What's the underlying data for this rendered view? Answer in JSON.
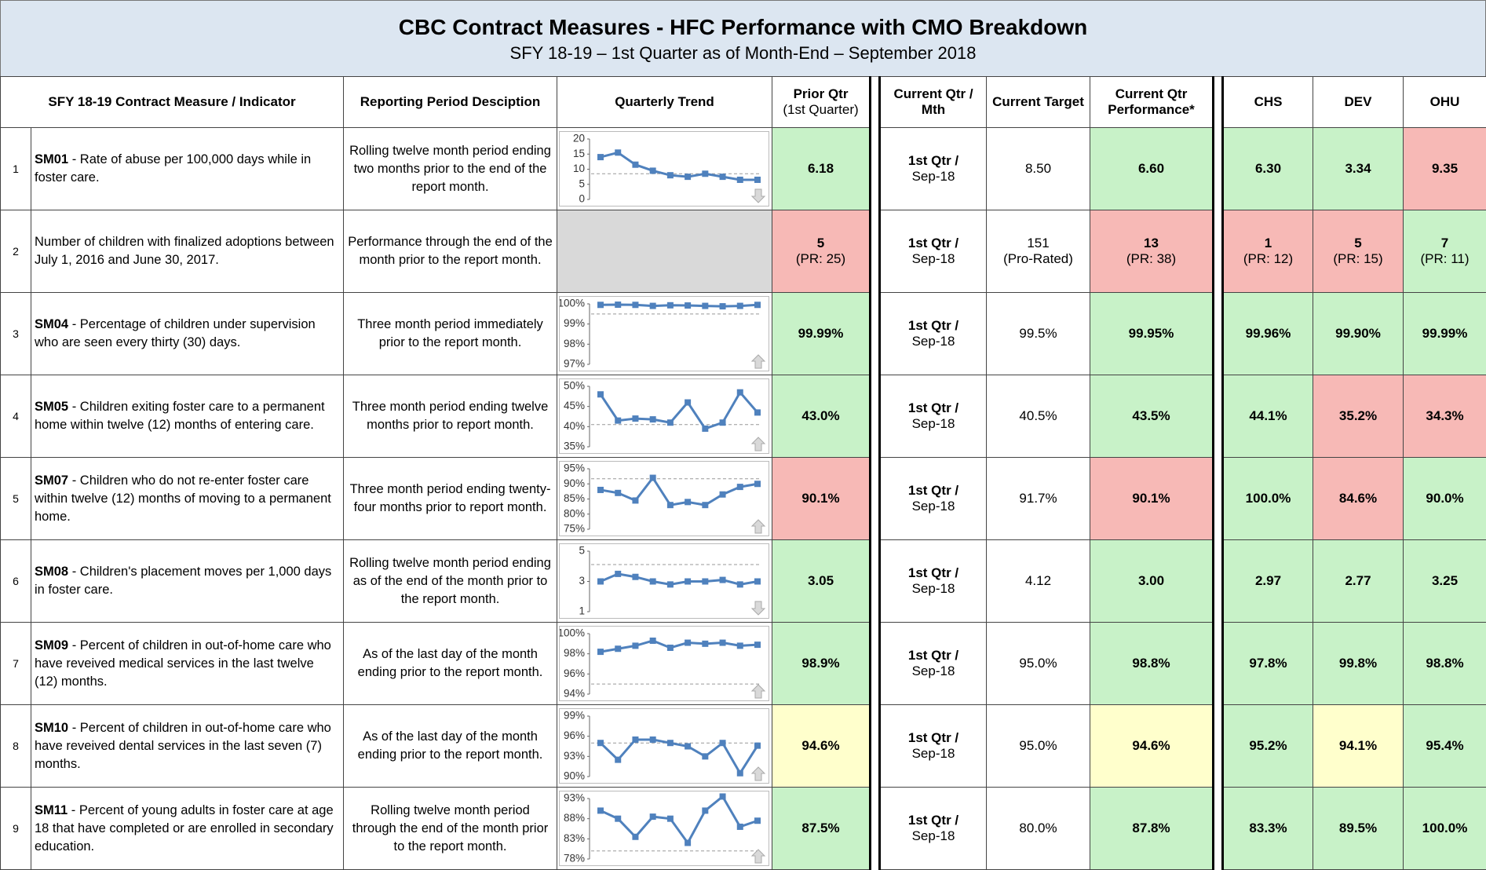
{
  "header": {
    "title": "CBC Contract Measures - HFC Performance with CMO Breakdown",
    "subtitle": "SFY 18-19 – 1st Quarter as of Month-End – September 2018"
  },
  "columns": {
    "measure": "SFY 18-19 Contract Measure / Indicator",
    "period": "Reporting Period Desciption",
    "trend": "Quarterly Trend",
    "prior": "Prior Qtr",
    "prior_note": "(1st Quarter)",
    "qtr": "Current Qtr / Mth",
    "target": "Current Target",
    "perf": "Current Qtr Performance*",
    "chs": "CHS",
    "dev": "DEV",
    "ohu": "OHU"
  },
  "rows": [
    {
      "num": "1",
      "code": "SM01",
      "desc": " - Rate of abuse per 100,000 days while in foster care.",
      "period": "Rolling twelve month period ending two months prior to the end of the report month.",
      "trend": {
        "type": "line",
        "color": "#4f81bd",
        "ylim": [
          0,
          20
        ],
        "yticks": [
          20,
          15,
          10,
          5,
          0
        ],
        "values": [
          14,
          15.5,
          11.5,
          9.5,
          8,
          7.5,
          8.5,
          7.5,
          6.5,
          6.5
        ],
        "target": 8.5,
        "arrow": "down"
      },
      "qtr": "1st Qtr  /",
      "mth": "Sep-18",
      "target": {
        "value": "8.50"
      },
      "prior": {
        "value": "6.18",
        "color": "#c8f2c8"
      },
      "perf": {
        "value": "6.60",
        "color": "#c8f2c8"
      },
      "chs": {
        "value": "6.30",
        "color": "#c8f2c8"
      },
      "dev": {
        "value": "3.34",
        "color": "#c8f2c8"
      },
      "ohu": {
        "value": "9.35",
        "color": "#f7b9b6"
      }
    },
    {
      "num": "2",
      "desc": "Number of children with finalized adoptions between July 1, 2016 and June 30, 2017.",
      "period": "Performance through the end of the month prior to the report month.",
      "qtr": "1st Qtr  /",
      "mth": "Sep-18",
      "target": {
        "value": "151",
        "note": "(Pro-Rated)"
      },
      "prior": {
        "value": "5",
        "note": "(PR: 25)",
        "color": "#f7b9b6"
      },
      "perf": {
        "value": "13",
        "note": "(PR: 38)",
        "color": "#f7b9b6"
      },
      "chs": {
        "value": "1",
        "note": "(PR: 12)",
        "color": "#f7b9b6"
      },
      "dev": {
        "value": "5",
        "note": "(PR: 15)",
        "color": "#f7b9b6"
      },
      "ohu": {
        "value": "7",
        "note": "(PR: 11)",
        "color": "#c8f2c8"
      }
    },
    {
      "num": "3",
      "code": "SM04",
      "desc": " - Percentage of children under supervision who are seen every thirty (30) days.",
      "period": "Three month period immediately prior to the report month.",
      "trend": {
        "type": "line",
        "color": "#4f81bd",
        "ylim": [
          97,
          100
        ],
        "yticks": [
          {
            "value": 100,
            "label": "100%"
          },
          {
            "value": 99,
            "label": "99%"
          },
          {
            "value": 98,
            "label": "98%"
          },
          {
            "value": 97,
            "label": "97%"
          }
        ],
        "values": [
          99.95,
          99.96,
          99.95,
          99.9,
          99.93,
          99.92,
          99.9,
          99.88,
          99.9,
          99.95
        ],
        "target": 99.5,
        "arrow": "up"
      },
      "qtr": "1st Qtr  /",
      "mth": "Sep-18",
      "target": {
        "value": "99.5%"
      },
      "prior": {
        "value": "99.99%",
        "color": "#c8f2c8"
      },
      "perf": {
        "value": "99.95%",
        "color": "#c8f2c8"
      },
      "chs": {
        "value": "99.96%",
        "color": "#c8f2c8"
      },
      "dev": {
        "value": "99.90%",
        "color": "#c8f2c8"
      },
      "ohu": {
        "value": "99.99%",
        "color": "#c8f2c8"
      }
    },
    {
      "num": "4",
      "code": "SM05",
      "desc": " - Children exiting foster care to a permanent home within twelve (12) months of entering care.",
      "period": "Three month period ending twelve months prior to report month.",
      "trend": {
        "type": "line",
        "color": "#4f81bd",
        "ylim": [
          35,
          50
        ],
        "yticks": [
          {
            "value": 50,
            "label": "50%"
          },
          {
            "value": 45,
            "label": "45%"
          },
          {
            "value": 40,
            "label": "40%"
          },
          {
            "value": 35,
            "label": "35%"
          }
        ],
        "values": [
          48,
          41.5,
          42,
          41.8,
          41,
          46,
          39.5,
          41,
          48.5,
          43.5
        ],
        "target": 40.5,
        "arrow": "up"
      },
      "qtr": "1st Qtr  /",
      "mth": "Sep-18",
      "target": {
        "value": "40.5%"
      },
      "prior": {
        "value": "43.0%",
        "color": "#c8f2c8"
      },
      "perf": {
        "value": "43.5%",
        "color": "#c8f2c8"
      },
      "chs": {
        "value": "44.1%",
        "color": "#c8f2c8"
      },
      "dev": {
        "value": "35.2%",
        "color": "#f7b9b6"
      },
      "ohu": {
        "value": "34.3%",
        "color": "#f7b9b6"
      }
    },
    {
      "num": "5",
      "code": "SM07",
      "desc": " - Children who do not re-enter foster care within twelve (12) months of moving to a permanent home.",
      "period": "Three month period ending twenty-four months prior to report month.",
      "trend": {
        "type": "line",
        "color": "#4f81bd",
        "ylim": [
          75,
          95
        ],
        "yticks": [
          {
            "value": 95,
            "label": "95%"
          },
          {
            "value": 90,
            "label": "90%"
          },
          {
            "value": 85,
            "label": "85%"
          },
          {
            "value": 80,
            "label": "80%"
          },
          {
            "value": 75,
            "label": "75%"
          }
        ],
        "values": [
          88,
          87,
          84.5,
          92,
          83,
          84,
          83,
          86.5,
          89,
          90
        ],
        "target": 91.7,
        "arrow": "up"
      },
      "qtr": "1st Qtr  /",
      "mth": "Sep-18",
      "target": {
        "value": "91.7%"
      },
      "prior": {
        "value": "90.1%",
        "color": "#f7b9b6"
      },
      "perf": {
        "value": "90.1%",
        "color": "#f7b9b6"
      },
      "chs": {
        "value": "100.0%",
        "color": "#c8f2c8"
      },
      "dev": {
        "value": "84.6%",
        "color": "#f7b9b6"
      },
      "ohu": {
        "value": "90.0%",
        "color": "#c8f2c8"
      }
    },
    {
      "num": "6",
      "code": "SM08",
      "desc": " - Children's placement moves per 1,000 days in foster care.",
      "period": "Rolling twelve month period ending as of the end of the month prior to the report month.",
      "trend": {
        "type": "line",
        "color": "#4f81bd",
        "ylim": [
          1,
          5
        ],
        "yticks": [
          5,
          3,
          1
        ],
        "values": [
          3,
          3.5,
          3.3,
          3,
          2.8,
          3,
          3,
          3.1,
          2.8,
          3
        ],
        "target": 4.12,
        "arrow": "down"
      },
      "qtr": "1st Qtr  /",
      "mth": "Sep-18",
      "target": {
        "value": "4.12"
      },
      "prior": {
        "value": "3.05",
        "color": "#c8f2c8"
      },
      "perf": {
        "value": "3.00",
        "color": "#c8f2c8"
      },
      "chs": {
        "value": "2.97",
        "color": "#c8f2c8"
      },
      "dev": {
        "value": "2.77",
        "color": "#c8f2c8"
      },
      "ohu": {
        "value": "3.25",
        "color": "#c8f2c8"
      }
    },
    {
      "num": "7",
      "code": "SM09",
      "desc": " - Percent of children in out-of-home care who have reveived medical services in the last twelve (12) months.",
      "period": "As of the last day of the month ending prior to the report month.",
      "trend": {
        "type": "line",
        "color": "#4f81bd",
        "ylim": [
          94,
          100
        ],
        "yticks": [
          {
            "value": 100,
            "label": "100%"
          },
          {
            "value": 98,
            "label": "98%"
          },
          {
            "value": 96,
            "label": "96%"
          },
          {
            "value": 94,
            "label": "94%"
          }
        ],
        "values": [
          98.2,
          98.5,
          98.8,
          99.3,
          98.6,
          99.1,
          99,
          99.1,
          98.8,
          98.9
        ],
        "target": 95,
        "arrow": "up"
      },
      "qtr": "1st Qtr  /",
      "mth": "Sep-18",
      "target": {
        "value": "95.0%"
      },
      "prior": {
        "value": "98.9%",
        "color": "#c8f2c8"
      },
      "perf": {
        "value": "98.8%",
        "color": "#c8f2c8"
      },
      "chs": {
        "value": "97.8%",
        "color": "#c8f2c8"
      },
      "dev": {
        "value": "99.8%",
        "color": "#c8f2c8"
      },
      "ohu": {
        "value": "98.8%",
        "color": "#c8f2c8"
      }
    },
    {
      "num": "8",
      "code": "SM10",
      "desc": " - Percent of children in out-of-home care who have reveived dental services in the last seven (7) months.",
      "period": "As of the last day of the month ending prior to the report month.",
      "trend": {
        "type": "line",
        "color": "#4f81bd",
        "ylim": [
          90,
          99
        ],
        "yticks": [
          {
            "value": 99,
            "label": "99%"
          },
          {
            "value": 96,
            "label": "96%"
          },
          {
            "value": 93,
            "label": "93%"
          },
          {
            "value": 90,
            "label": "90%"
          }
        ],
        "values": [
          95,
          92.5,
          95.5,
          95.5,
          95,
          94.5,
          93,
          95,
          90.5,
          94.6
        ],
        "target": 95,
        "arrow": "up"
      },
      "qtr": "1st Qtr  /",
      "mth": "Sep-18",
      "target": {
        "value": "95.0%"
      },
      "prior": {
        "value": "94.6%",
        "color": "#ffffcc"
      },
      "perf": {
        "value": "94.6%",
        "color": "#ffffcc"
      },
      "chs": {
        "value": "95.2%",
        "color": "#c8f2c8"
      },
      "dev": {
        "value": "94.1%",
        "color": "#ffffcc"
      },
      "ohu": {
        "value": "95.4%",
        "color": "#c8f2c8"
      }
    },
    {
      "num": "9",
      "code": "SM11",
      "desc": " - Percent of young adults in foster care at age 18 that have completed or are enrolled in secondary education.",
      "period": "Rolling twelve month period through the end of the month prior to the report month.",
      "trend": {
        "type": "line",
        "color": "#4f81bd",
        "ylim": [
          78,
          93
        ],
        "yticks": [
          {
            "value": 93,
            "label": "93%"
          },
          {
            "value": 88,
            "label": "88%"
          },
          {
            "value": 83,
            "label": "83%"
          },
          {
            "value": 78,
            "label": "78%"
          }
        ],
        "values": [
          90,
          88,
          83.5,
          88.5,
          88,
          82,
          90,
          93.5,
          86,
          87.5
        ],
        "target": 80,
        "arrow": "up"
      },
      "qtr": "1st Qtr  /",
      "mth": "Sep-18",
      "target": {
        "value": "80.0%"
      },
      "prior": {
        "value": "87.5%",
        "color": "#c8f2c8"
      },
      "perf": {
        "value": "87.8%",
        "color": "#c8f2c8"
      },
      "chs": {
        "value": "83.3%",
        "color": "#c8f2c8"
      },
      "dev": {
        "value": "89.5%",
        "color": "#c8f2c8"
      },
      "ohu": {
        "value": "100.0%",
        "color": "#c8f2c8"
      }
    }
  ]
}
